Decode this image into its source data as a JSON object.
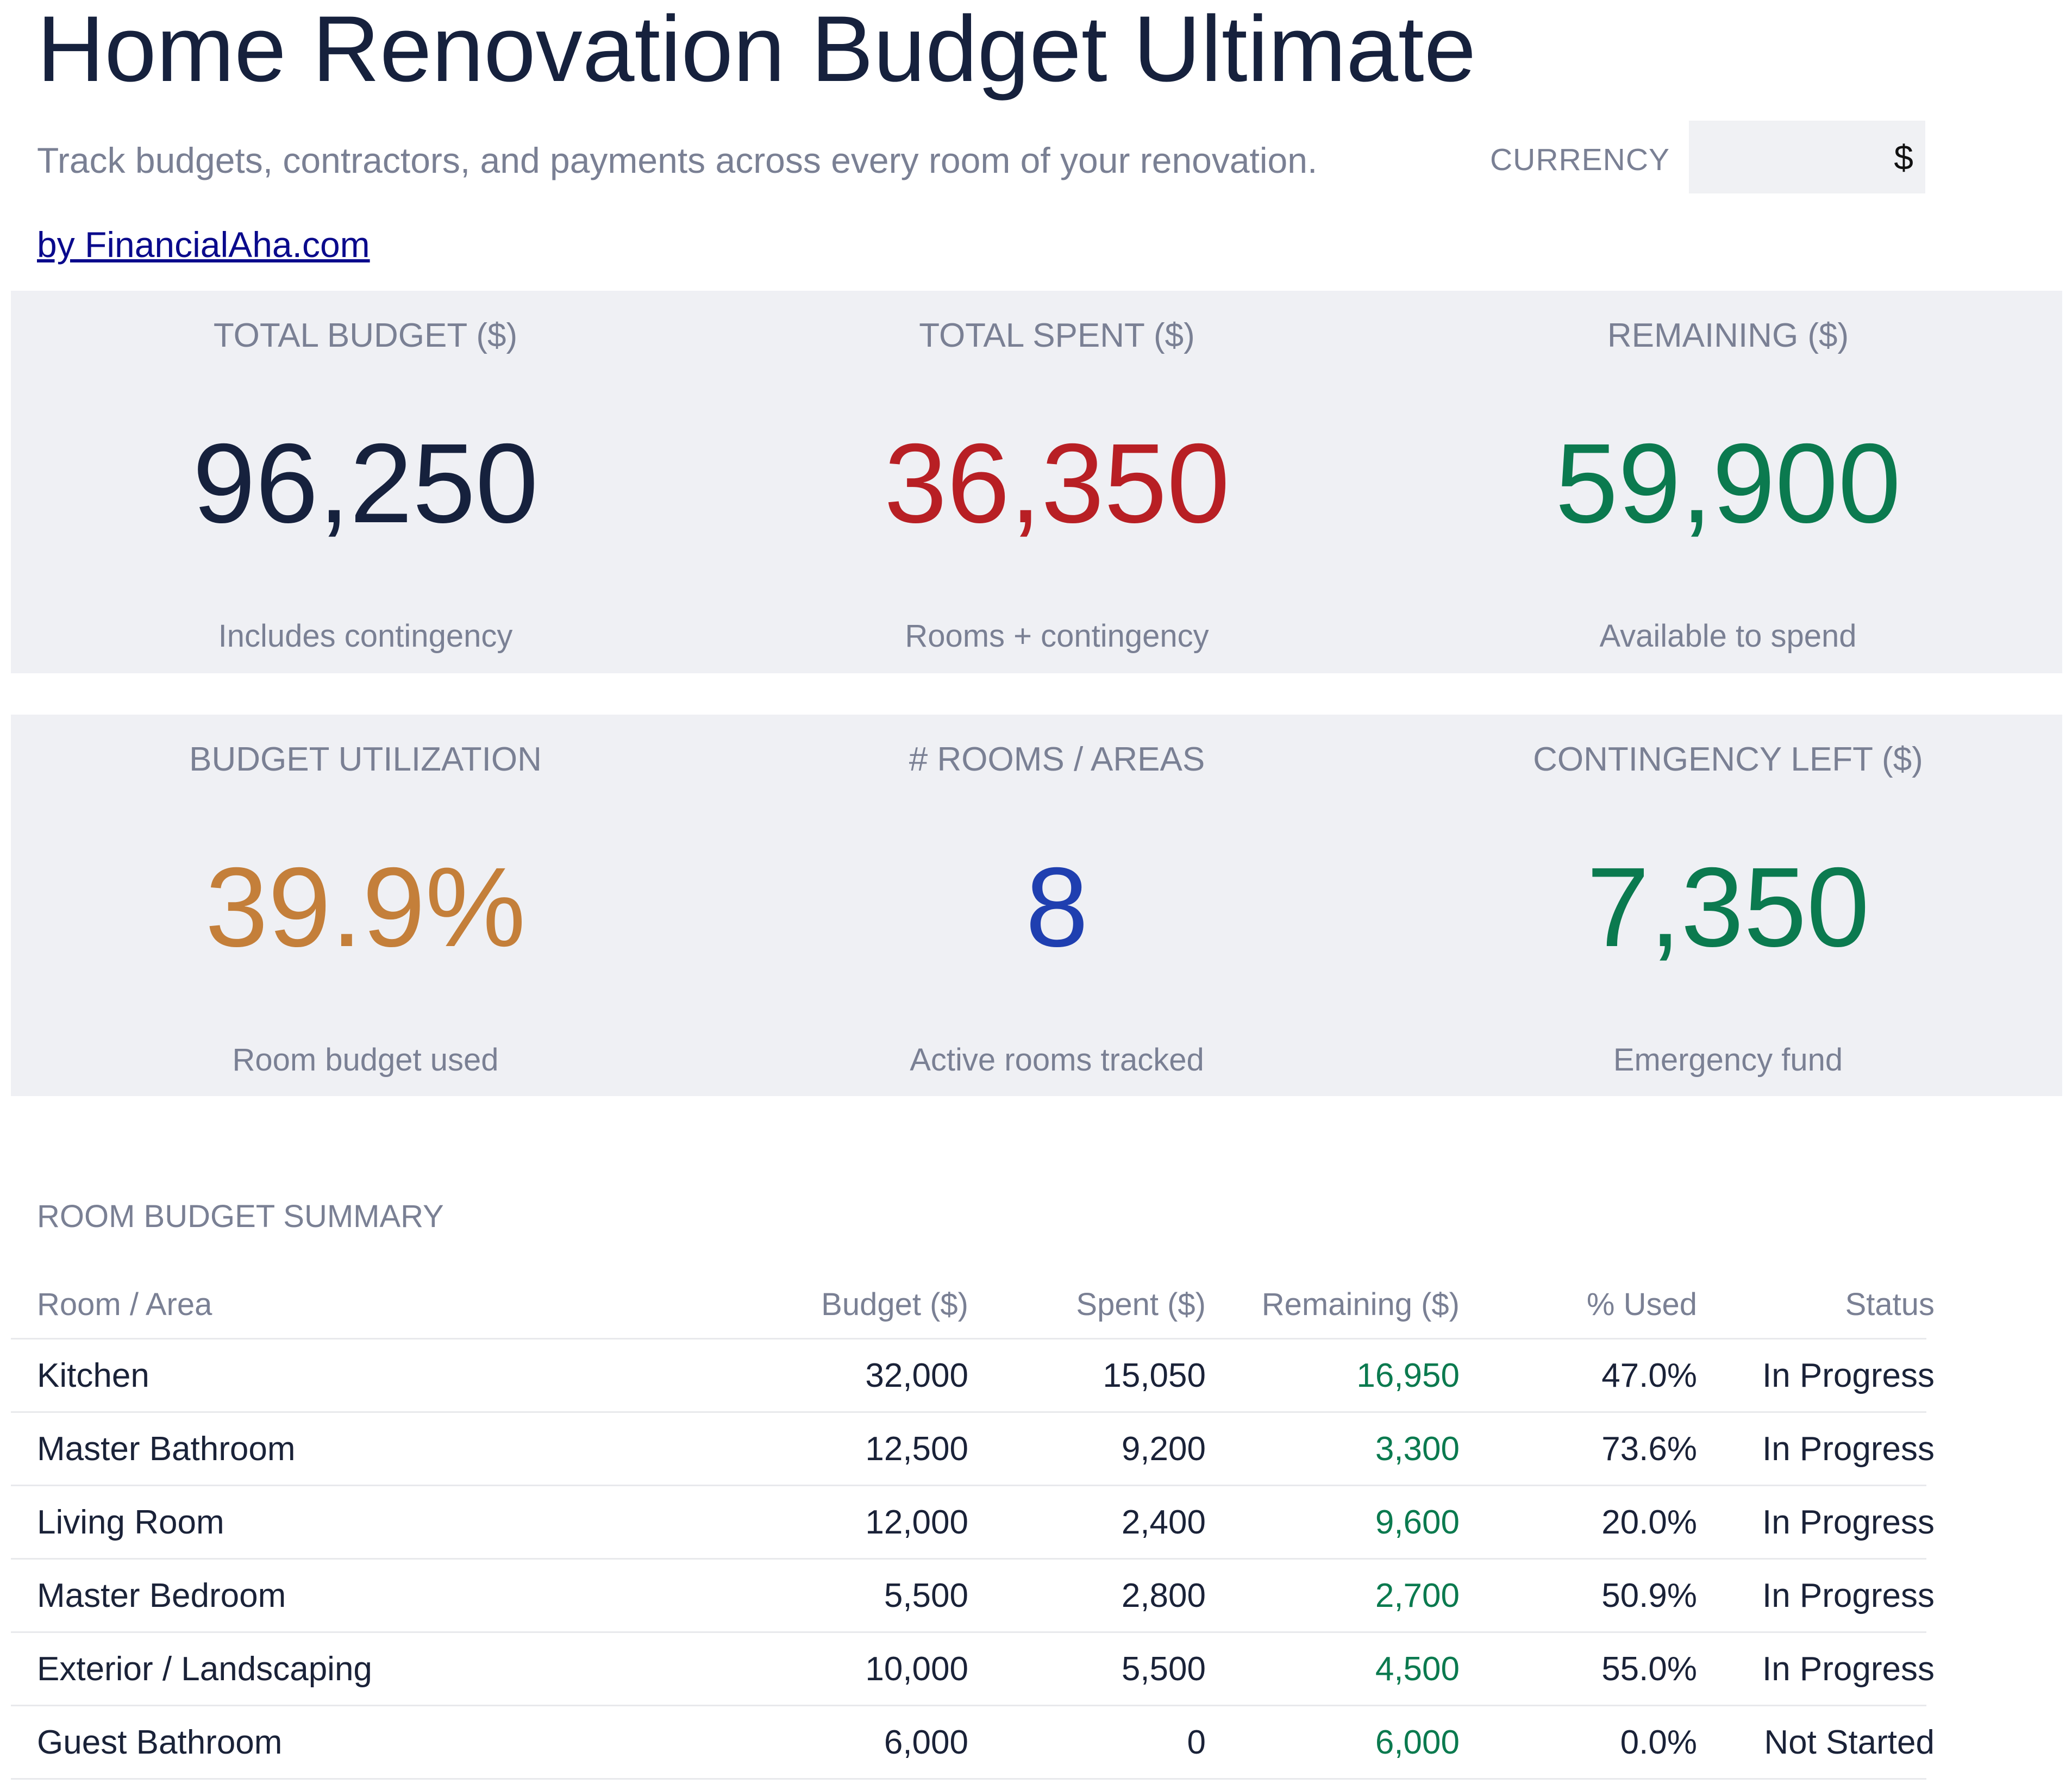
{
  "header": {
    "title": "Home Renovation Budget Ultimate",
    "subtitle": "Track budgets, contractors, and payments across every room of your renovation.",
    "currency_label": "CURRENCY",
    "currency_value": "$",
    "byline": "by FinancialAha.com"
  },
  "kpis_row1": [
    {
      "label": "TOTAL BUDGET ($)",
      "value": "96,250",
      "caption": "Includes contingency",
      "color": "#16213d"
    },
    {
      "label": "TOTAL SPENT ($)",
      "value": "36,350",
      "caption": "Rooms + contingency",
      "color": "#b81f24"
    },
    {
      "label": "REMAINING ($)",
      "value": "59,900",
      "caption": "Available to spend",
      "color": "#0b7a4f"
    }
  ],
  "kpis_row2": [
    {
      "label": "BUDGET UTILIZATION",
      "value": "39.9%",
      "caption": "Room budget used",
      "color": "#c47f3a"
    },
    {
      "label": "# ROOMS / AREAS",
      "value": "8",
      "caption": "Active rooms tracked",
      "color": "#1f3fb0"
    },
    {
      "label": "CONTINGENCY LEFT ($)",
      "value": "7,350",
      "caption": "Emergency fund",
      "color": "#0b7a4f"
    }
  ],
  "summary": {
    "title": "ROOM BUDGET SUMMARY",
    "columns": [
      "Room / Area",
      "Budget ($)",
      "Spent ($)",
      "Remaining ($)",
      "% Used",
      "Status"
    ],
    "rows": [
      [
        "Kitchen",
        "32,000",
        "15,050",
        "16,950",
        "47.0%",
        "In Progress"
      ],
      [
        "Master Bathroom",
        "12,500",
        "9,200",
        "3,300",
        "73.6%",
        "In Progress"
      ],
      [
        "Living Room",
        "12,000",
        "2,400",
        "9,600",
        "20.0%",
        "In Progress"
      ],
      [
        "Master Bedroom",
        "5,500",
        "2,800",
        "2,700",
        "50.9%",
        "In Progress"
      ],
      [
        "Exterior / Landscaping",
        "10,000",
        "5,500",
        "4,500",
        "55.0%",
        "In Progress"
      ],
      [
        "Guest Bathroom",
        "6,000",
        "0",
        "6,000",
        "0.0%",
        "Not Started"
      ]
    ]
  }
}
